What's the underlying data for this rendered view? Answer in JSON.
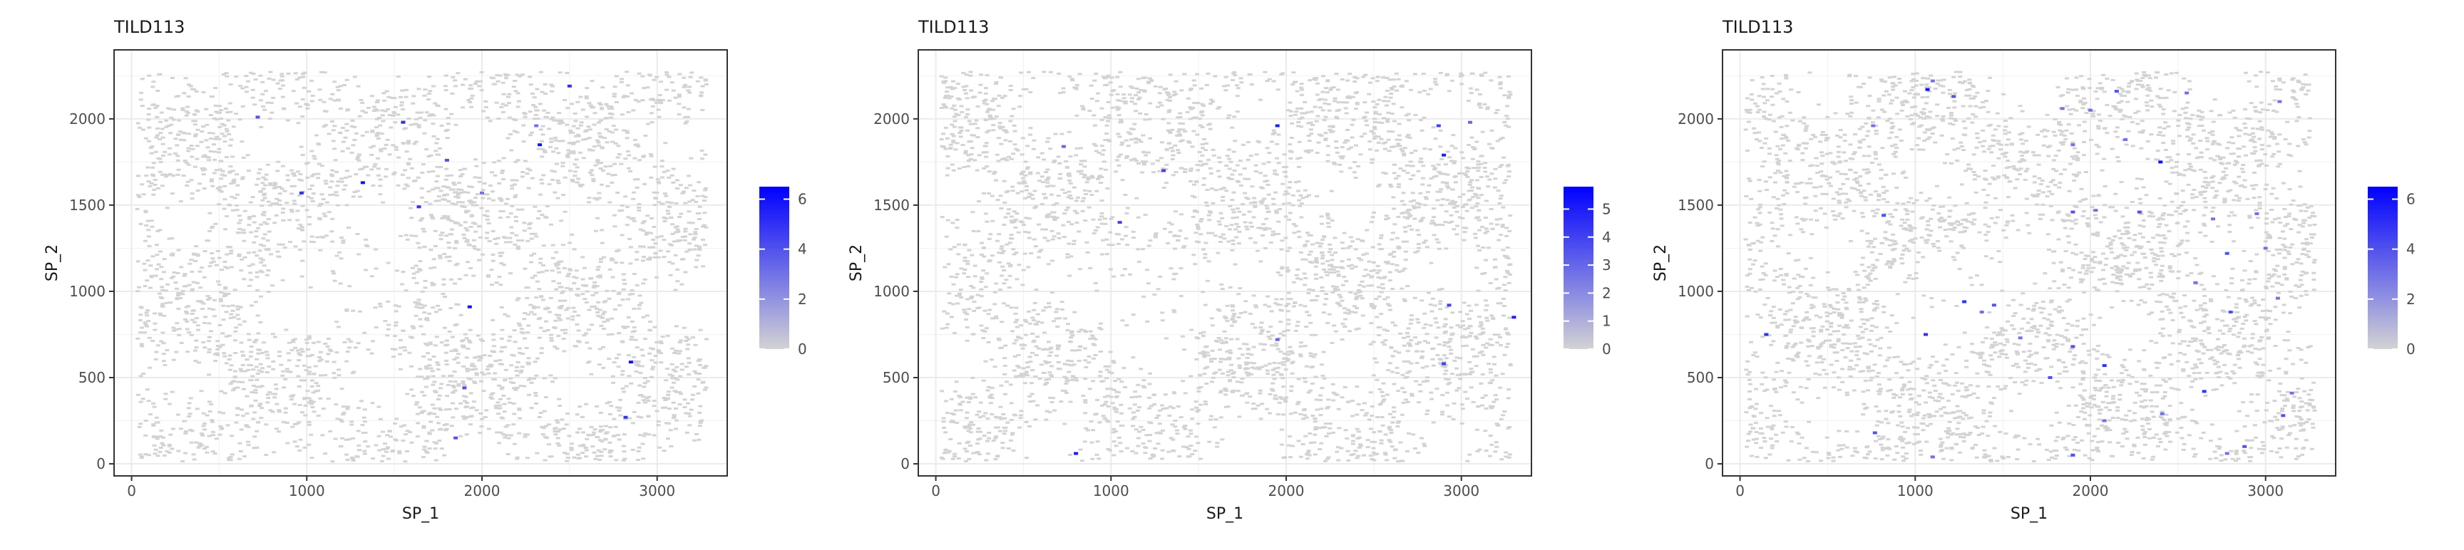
{
  "colors": {
    "panel_border": "#333333",
    "grid": "#ebebeb",
    "background": "#ffffff",
    "low": "#d3d3d3",
    "high": "#0000ff",
    "text": "#1a1a1a",
    "tick_text": "#4d4d4d"
  },
  "chart_data": [
    {
      "type": "scatter",
      "title": "TILD113",
      "xlabel": "SP_1",
      "ylabel": "SP_2",
      "xlim": [
        -100,
        3400
      ],
      "ylim": [
        -70,
        2400
      ],
      "x_ticks": [
        0,
        1000,
        2000,
        3000
      ],
      "y_ticks": [
        0,
        500,
        1000,
        1500,
        2000
      ],
      "colorbar": {
        "min": 0,
        "max": 6.5,
        "ticks": [
          0,
          2,
          4,
          6
        ]
      },
      "expressing_points": [
        {
          "x": 720,
          "y": 2010,
          "v": 4
        },
        {
          "x": 1550,
          "y": 1980,
          "v": 5
        },
        {
          "x": 2310,
          "y": 1960,
          "v": 3
        },
        {
          "x": 2500,
          "y": 2190,
          "v": 5
        },
        {
          "x": 2330,
          "y": 1850,
          "v": 6
        },
        {
          "x": 1800,
          "y": 1760,
          "v": 4
        },
        {
          "x": 1320,
          "y": 1630,
          "v": 6
        },
        {
          "x": 970,
          "y": 1570,
          "v": 5
        },
        {
          "x": 1640,
          "y": 1490,
          "v": 5
        },
        {
          "x": 2000,
          "y": 1570,
          "v": 3
        },
        {
          "x": 1930,
          "y": 910,
          "v": 6
        },
        {
          "x": 1900,
          "y": 440,
          "v": 4
        },
        {
          "x": 2850,
          "y": 590,
          "v": 6
        },
        {
          "x": 1850,
          "y": 150,
          "v": 4
        },
        {
          "x": 2820,
          "y": 270,
          "v": 5
        }
      ]
    },
    {
      "type": "scatter",
      "title": "TILD113",
      "xlabel": "SP_1",
      "ylabel": "SP_2",
      "xlim": [
        -100,
        3400
      ],
      "ylim": [
        -70,
        2400
      ],
      "x_ticks": [
        0,
        1000,
        2000,
        3000
      ],
      "y_ticks": [
        0,
        500,
        1000,
        1500,
        2000
      ],
      "colorbar": {
        "min": 0,
        "max": 5.8,
        "ticks": [
          0,
          1,
          2,
          3,
          4,
          5
        ]
      },
      "expressing_points": [
        {
          "x": 1950,
          "y": 1960,
          "v": 5
        },
        {
          "x": 2870,
          "y": 1960,
          "v": 4
        },
        {
          "x": 3050,
          "y": 1980,
          "v": 3
        },
        {
          "x": 2900,
          "y": 1790,
          "v": 5
        },
        {
          "x": 1300,
          "y": 1700,
          "v": 4
        },
        {
          "x": 730,
          "y": 1840,
          "v": 3
        },
        {
          "x": 1050,
          "y": 1400,
          "v": 4
        },
        {
          "x": 1950,
          "y": 720,
          "v": 3
        },
        {
          "x": 2930,
          "y": 920,
          "v": 4
        },
        {
          "x": 3300,
          "y": 850,
          "v": 5
        },
        {
          "x": 2900,
          "y": 580,
          "v": 4
        },
        {
          "x": 800,
          "y": 60,
          "v": 5
        }
      ]
    },
    {
      "type": "scatter",
      "title": "TILD113",
      "xlabel": "SP_1",
      "ylabel": "SP_2",
      "xlim": [
        -100,
        3400
      ],
      "ylim": [
        -70,
        2400
      ],
      "x_ticks": [
        0,
        1000,
        2000,
        3000
      ],
      "y_ticks": [
        0,
        500,
        1000,
        1500,
        2000
      ],
      "colorbar": {
        "min": 0,
        "max": 6.5,
        "ticks": [
          0,
          2,
          4,
          6
        ]
      },
      "expressing_points": [
        {
          "x": 1070,
          "y": 2170,
          "v": 6
        },
        {
          "x": 1100,
          "y": 2220,
          "v": 3
        },
        {
          "x": 1220,
          "y": 2130,
          "v": 4
        },
        {
          "x": 760,
          "y": 1960,
          "v": 3
        },
        {
          "x": 2150,
          "y": 2160,
          "v": 4
        },
        {
          "x": 2550,
          "y": 2150,
          "v": 3
        },
        {
          "x": 3080,
          "y": 2100,
          "v": 3
        },
        {
          "x": 2000,
          "y": 2050,
          "v": 3
        },
        {
          "x": 1840,
          "y": 2060,
          "v": 3
        },
        {
          "x": 2400,
          "y": 1750,
          "v": 6
        },
        {
          "x": 1900,
          "y": 1850,
          "v": 3
        },
        {
          "x": 2200,
          "y": 1880,
          "v": 3
        },
        {
          "x": 820,
          "y": 1440,
          "v": 4
        },
        {
          "x": 1900,
          "y": 1460,
          "v": 4
        },
        {
          "x": 2030,
          "y": 1470,
          "v": 3
        },
        {
          "x": 2280,
          "y": 1460,
          "v": 4
        },
        {
          "x": 2700,
          "y": 1420,
          "v": 3
        },
        {
          "x": 2950,
          "y": 1450,
          "v": 3
        },
        {
          "x": 2780,
          "y": 1220,
          "v": 4
        },
        {
          "x": 3000,
          "y": 1250,
          "v": 3
        },
        {
          "x": 2600,
          "y": 1050,
          "v": 3
        },
        {
          "x": 1280,
          "y": 940,
          "v": 5
        },
        {
          "x": 1450,
          "y": 920,
          "v": 4
        },
        {
          "x": 1380,
          "y": 880,
          "v": 3
        },
        {
          "x": 2800,
          "y": 880,
          "v": 4
        },
        {
          "x": 3070,
          "y": 960,
          "v": 3
        },
        {
          "x": 150,
          "y": 750,
          "v": 5
        },
        {
          "x": 1060,
          "y": 750,
          "v": 5
        },
        {
          "x": 1600,
          "y": 730,
          "v": 3
        },
        {
          "x": 1900,
          "y": 680,
          "v": 4
        },
        {
          "x": 2080,
          "y": 570,
          "v": 5
        },
        {
          "x": 1770,
          "y": 500,
          "v": 4
        },
        {
          "x": 2650,
          "y": 420,
          "v": 5
        },
        {
          "x": 3150,
          "y": 410,
          "v": 3
        },
        {
          "x": 2410,
          "y": 290,
          "v": 3
        },
        {
          "x": 2080,
          "y": 250,
          "v": 3
        },
        {
          "x": 3100,
          "y": 280,
          "v": 4
        },
        {
          "x": 770,
          "y": 180,
          "v": 4
        },
        {
          "x": 2880,
          "y": 100,
          "v": 4
        },
        {
          "x": 2780,
          "y": 60,
          "v": 3
        },
        {
          "x": 1100,
          "y": 40,
          "v": 3
        },
        {
          "x": 1900,
          "y": 50,
          "v": 4
        }
      ]
    }
  ]
}
